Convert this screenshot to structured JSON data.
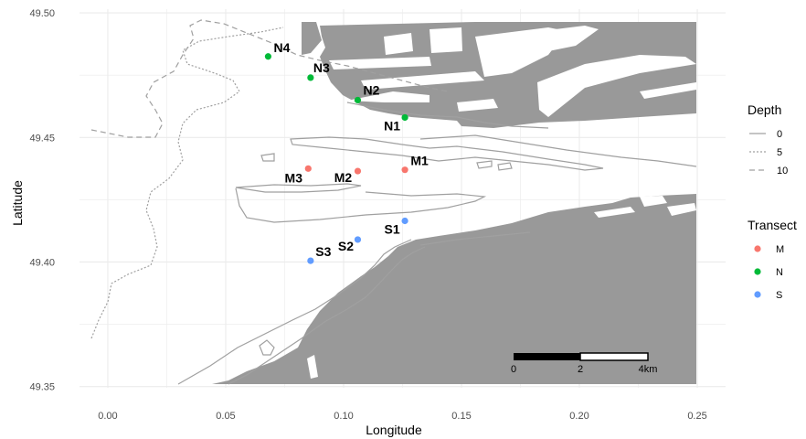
{
  "colors": {
    "land": "#999999",
    "water": "#ffffff",
    "grid": "#ebebeb",
    "contour": "#a0a0a0",
    "tick_text": "#4d4d4d",
    "transect_m": "#F8766D",
    "transect_n": "#00BA38",
    "transect_s": "#619CFF"
  },
  "axes": {
    "x_label": "Longitude",
    "y_label": "Latitude",
    "x_ticks": [
      {
        "value": 0.0,
        "label": "0.00"
      },
      {
        "value": 0.05,
        "label": "0.05"
      },
      {
        "value": 0.1,
        "label": "0.10"
      },
      {
        "value": 0.15,
        "label": "0.15"
      },
      {
        "value": 0.2,
        "label": "0.20"
      },
      {
        "value": 0.25,
        "label": "0.25"
      }
    ],
    "y_ticks": [
      {
        "value": 49.35,
        "label": "49.35"
      },
      {
        "value": 49.4,
        "label": "49.40"
      },
      {
        "value": 49.45,
        "label": "49.45"
      },
      {
        "value": 49.5,
        "label": "49.50"
      }
    ],
    "xlim": [
      -0.012,
      0.262
    ],
    "ylim": [
      49.3495,
      49.5015
    ]
  },
  "stations": [
    {
      "label": "N4",
      "lon": 0.068,
      "lat": 49.4825,
      "transect": "N"
    },
    {
      "label": "N3",
      "lon": 0.086,
      "lat": 49.474,
      "transect": "N"
    },
    {
      "label": "N2",
      "lon": 0.106,
      "lat": 49.465,
      "transect": "N"
    },
    {
      "label": "N1",
      "lon": 0.126,
      "lat": 49.458,
      "transect": "N"
    },
    {
      "label": "M1",
      "lon": 0.126,
      "lat": 49.437,
      "transect": "M"
    },
    {
      "label": "M2",
      "lon": 0.106,
      "lat": 49.4365,
      "transect": "M"
    },
    {
      "label": "M3",
      "lon": 0.085,
      "lat": 49.4375,
      "transect": "M"
    },
    {
      "label": "S1",
      "lon": 0.126,
      "lat": 49.4165,
      "transect": "S"
    },
    {
      "label": "S2",
      "lon": 0.106,
      "lat": 49.409,
      "transect": "S"
    },
    {
      "label": "S3",
      "lon": 0.086,
      "lat": 49.4005,
      "transect": "S"
    }
  ],
  "legend_depth": {
    "title": "Depth",
    "items": [
      {
        "label": "0",
        "dash": "solid"
      },
      {
        "label": "5",
        "dash": "dotted"
      },
      {
        "label": "10",
        "dash": "dashed"
      }
    ]
  },
  "legend_transect": {
    "title": "Transect",
    "items": [
      {
        "label": "M",
        "color": "#F8766D"
      },
      {
        "label": "N",
        "color": "#00BA38"
      },
      {
        "label": "S",
        "color": "#619CFF"
      }
    ]
  },
  "scalebar": {
    "labels": [
      "0",
      "2",
      "4km"
    ]
  }
}
